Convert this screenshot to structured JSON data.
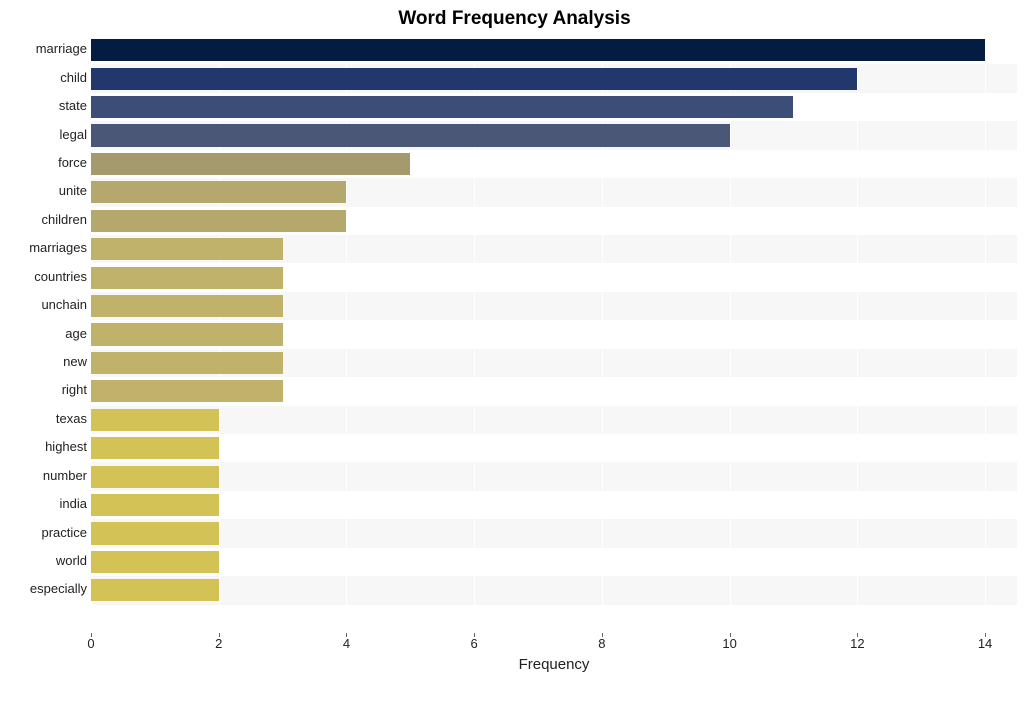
{
  "chart": {
    "type": "bar-horizontal",
    "title": "Word Frequency Analysis",
    "title_fontsize": 19,
    "title_fontweight": "bold",
    "title_color": "#000000",
    "xaxis_label": "Frequency",
    "xaxis_label_fontsize": 15,
    "label_fontsize": 13,
    "background_color": "#ffffff",
    "plot_bg_color": "#f7f7f7",
    "plot_bg_stripe_color": "#ffffff",
    "grid_color": "#ffffff",
    "xlim": [
      0,
      14.5
    ],
    "xticks": [
      0,
      2,
      4,
      6,
      8,
      10,
      12,
      14
    ],
    "bar_height_ratio": 0.78,
    "categories": [
      "marriage",
      "child",
      "state",
      "legal",
      "force",
      "unite",
      "children",
      "marriages",
      "countries",
      "unchain",
      "age",
      "new",
      "right",
      "texas",
      "highest",
      "number",
      "india",
      "practice",
      "world",
      "especially"
    ],
    "values": [
      14,
      12,
      11,
      10,
      5,
      4,
      4,
      3,
      3,
      3,
      3,
      3,
      3,
      2,
      2,
      2,
      2,
      2,
      2,
      2
    ],
    "bar_colors": [
      "#051c42",
      "#21376d",
      "#3c4d77",
      "#4b5776",
      "#a59a6d",
      "#b4a86d",
      "#b4a86d",
      "#c0b26a",
      "#c0b26a",
      "#c0b26a",
      "#c0b26a",
      "#c0b26a",
      "#c0b26a",
      "#d3c255",
      "#d3c255",
      "#d3c255",
      "#d3c255",
      "#d3c255",
      "#d3c255",
      "#d3c255"
    ],
    "tick_label_color": "#222222"
  }
}
